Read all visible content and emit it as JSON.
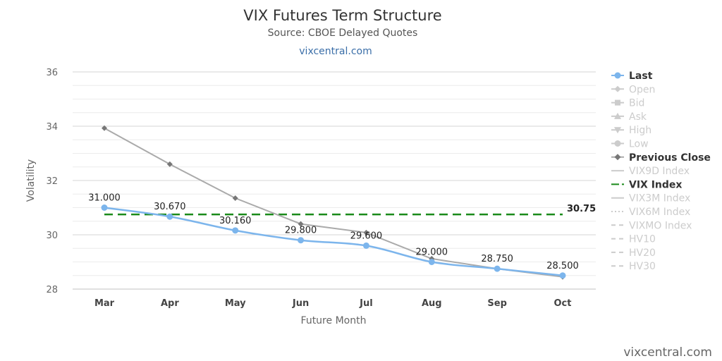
{
  "header": {
    "title": "VIX Futures Term Structure",
    "subtitle": "Source: CBOE Delayed Quotes",
    "link": "vixcentral.com"
  },
  "watermark": "vixcentral.com",
  "chart_data": {
    "type": "line",
    "title": "VIX Futures Term Structure",
    "subtitle": "Source: CBOE Delayed Quotes",
    "xlabel": "Future Month",
    "ylabel": "Volatility",
    "categories": [
      "Mar",
      "Apr",
      "May",
      "Jun",
      "Jul",
      "Aug",
      "Sep",
      "Oct"
    ],
    "ylim": [
      28,
      36
    ],
    "yticks": [
      28,
      30,
      32,
      34,
      36
    ],
    "grid": true,
    "legend_position": "right",
    "series": [
      {
        "name": "Last",
        "values": [
          31.0,
          30.67,
          30.16,
          29.8,
          29.6,
          29.0,
          28.75,
          28.5
        ],
        "labels": [
          "31.000",
          "30.670",
          "30.160",
          "29.800",
          "29.600",
          "29.000",
          "28.750",
          "28.500"
        ],
        "color": "#7cb5ec",
        "active": true
      },
      {
        "name": "Previous Close",
        "values": [
          33.93,
          32.6,
          31.35,
          30.4,
          30.08,
          29.12,
          28.75,
          28.45
        ],
        "color": "#aaaaaa",
        "marker_color": "#777777",
        "active": true
      },
      {
        "name": "VIX Index",
        "values": [
          30.75,
          30.75,
          30.75,
          30.75,
          30.75,
          30.75,
          30.75,
          30.75
        ],
        "end_label": "30.75",
        "color": "#1a8a1a",
        "dashed": true,
        "active": true
      }
    ],
    "legend": [
      {
        "name": "Last",
        "symbol": "circle",
        "active": true,
        "color": "#7cb5ec"
      },
      {
        "name": "Open",
        "symbol": "diamond",
        "active": false
      },
      {
        "name": "Bid",
        "symbol": "square",
        "active": false
      },
      {
        "name": "Ask",
        "symbol": "triangle",
        "active": false
      },
      {
        "name": "High",
        "symbol": "triangle-down",
        "active": false
      },
      {
        "name": "Low",
        "symbol": "circle",
        "active": false
      },
      {
        "name": "Previous Close",
        "symbol": "diamond",
        "active": true,
        "color": "#777777"
      },
      {
        "name": "VIX9D Index",
        "symbol": "line",
        "active": false
      },
      {
        "name": "VIX Index",
        "symbol": "line-dash",
        "active": true,
        "color": "#1a8a1a"
      },
      {
        "name": "VIX3M Index",
        "symbol": "line",
        "active": false
      },
      {
        "name": "VIX6M Index",
        "symbol": "line-dot",
        "active": false
      },
      {
        "name": "VIXMO Index",
        "symbol": "line-dash",
        "active": false
      },
      {
        "name": "HV10",
        "symbol": "line-dash",
        "active": false
      },
      {
        "name": "HV20",
        "symbol": "line-dash",
        "active": false
      },
      {
        "name": "HV30",
        "symbol": "line-dash",
        "active": false
      }
    ]
  }
}
